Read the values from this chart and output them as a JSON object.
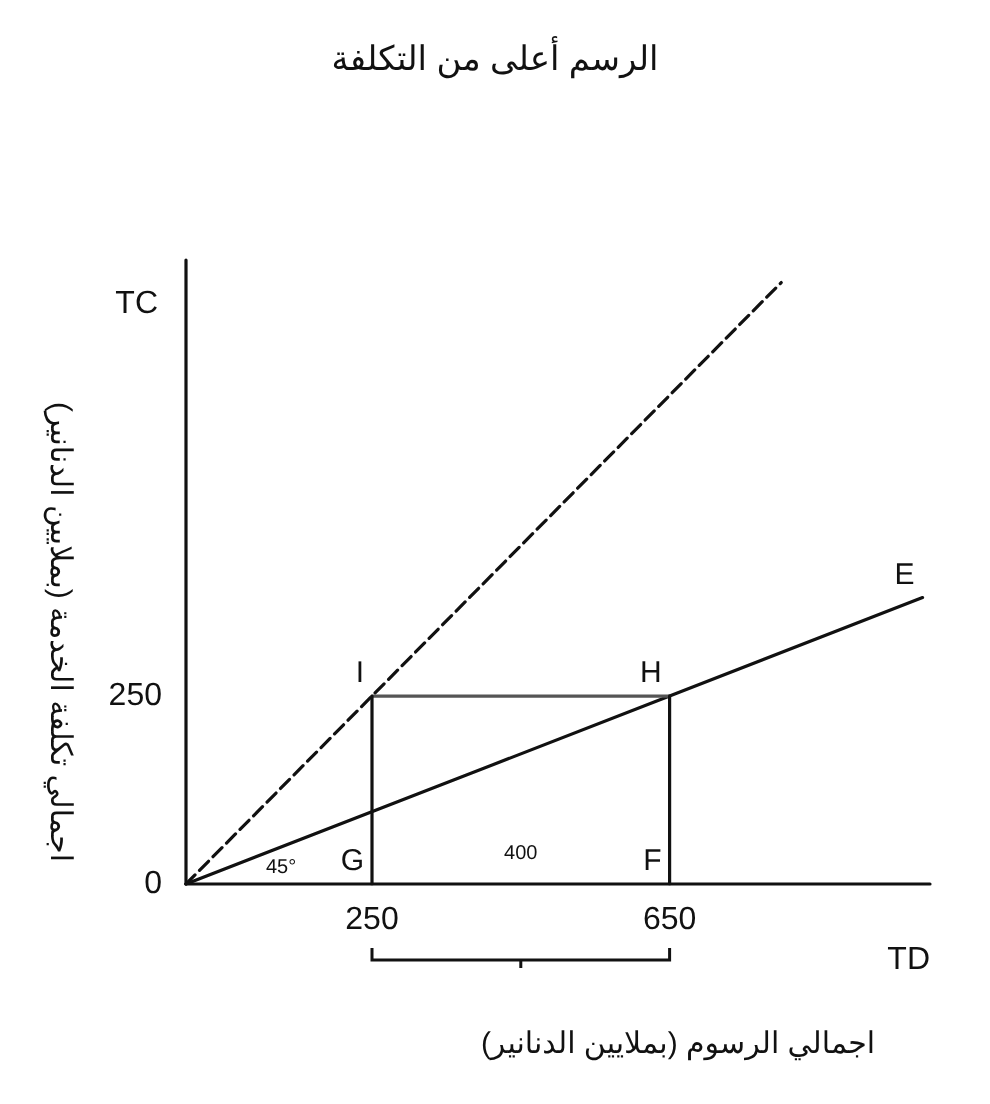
{
  "chart_data": {
    "type": "line",
    "title": "الرسم أعلى من التكلفة",
    "xlabel": "TD",
    "ylabel": "TC",
    "xlim": [
      0,
      1000
    ],
    "ylim": [
      0,
      830
    ],
    "xticks": [
      250,
      650
    ],
    "yticks": [
      0,
      250
    ],
    "grid": false,
    "marker": "none",
    "series": [
      {
        "color": "#111111",
        "line_style": "dashed",
        "x": [
          0,
          800
        ],
        "values": [
          0,
          800
        ]
      },
      {
        "color": "#111111",
        "line_style": "solid",
        "x": [
          0,
          650,
          990
        ],
        "values": [
          0,
          250,
          381
        ]
      },
      {
        "color": "#555555",
        "line_style": "solid",
        "x": [
          250,
          650
        ],
        "values": [
          250,
          250
        ]
      },
      {
        "color": "#111111",
        "line_style": "solid",
        "x": [
          250,
          250
        ],
        "values": [
          250,
          0
        ]
      },
      {
        "color": "#111111",
        "line_style": "solid",
        "x": [
          650,
          650
        ],
        "values": [
          250,
          0
        ]
      }
    ],
    "annotations": [
      "اجمالي الرسوم (بملايين الدنانير)",
      "اجمالي تكلفة الخدمة (بملايين الدنانير)",
      {
        "text": "I",
        "x": 250,
        "y": 250
      },
      {
        "text": "H",
        "x": 650,
        "y": 250
      },
      {
        "text": "G",
        "x": 250,
        "y": 0
      },
      {
        "text": "F",
        "x": 650,
        "y": 0
      },
      {
        "text": "E",
        "x": 990,
        "y": 381
      },
      "45°",
      "400"
    ]
  }
}
